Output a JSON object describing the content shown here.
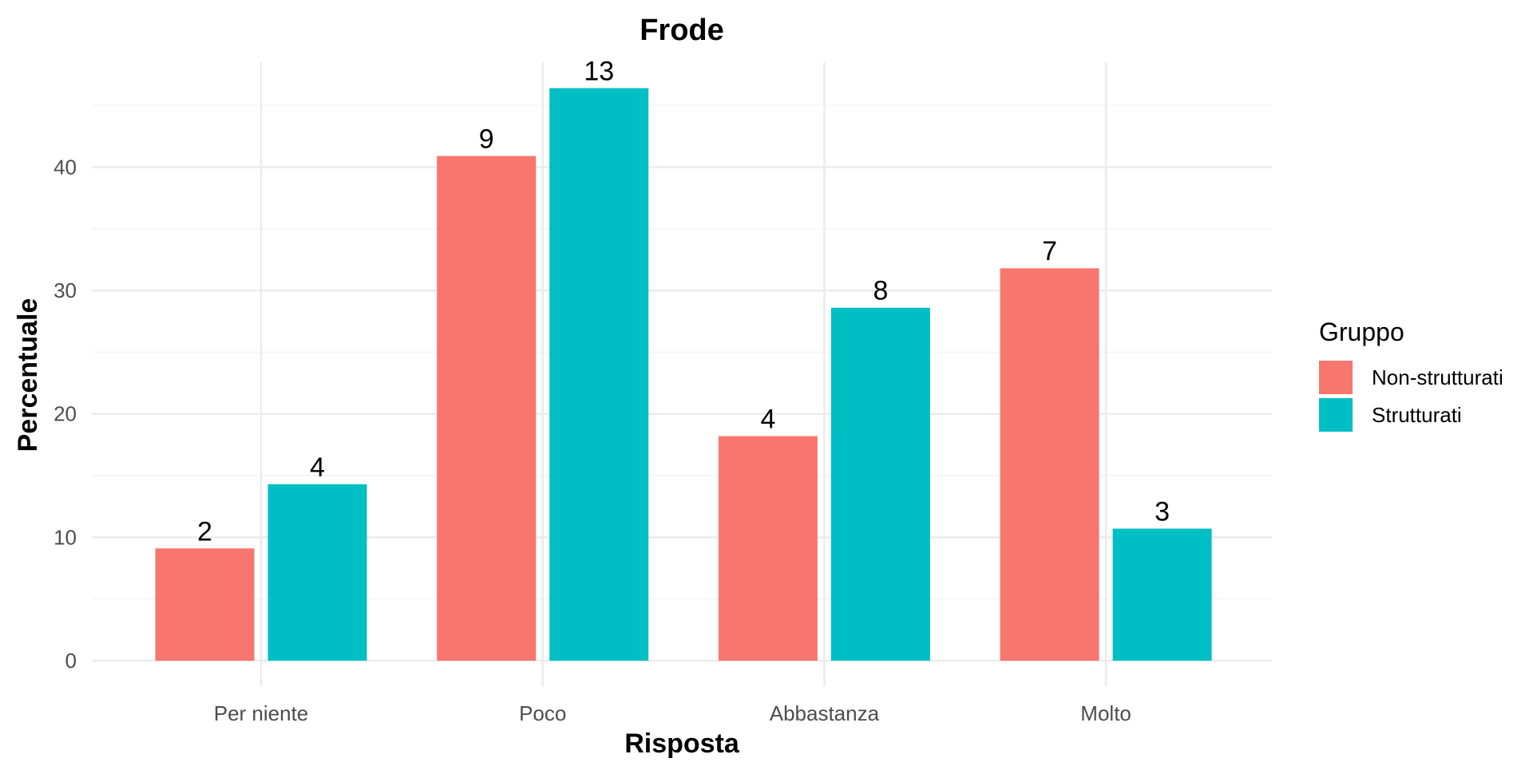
{
  "chart_data": {
    "type": "bar",
    "title": "Frode",
    "xlabel": "Risposta",
    "ylabel": "Percentuale",
    "categories": [
      "Per niente",
      "Poco",
      "Abbastanza",
      "Molto"
    ],
    "ylim": [
      0,
      48.5
    ],
    "yticks": [
      0,
      10,
      20,
      30,
      40
    ],
    "grid": true,
    "legend": {
      "title": "Gruppo",
      "placement": "right"
    },
    "series": [
      {
        "name": "Non-strutturati",
        "color": "#F8766D",
        "values": [
          9.1,
          40.9,
          18.2,
          31.8
        ],
        "labels": [
          "2",
          "9",
          "4",
          "7"
        ]
      },
      {
        "name": "Strutturati",
        "color": "#00BFC4",
        "values": [
          14.3,
          46.4,
          28.6,
          10.7
        ],
        "labels": [
          "4",
          "13",
          "8",
          "3"
        ]
      }
    ]
  }
}
